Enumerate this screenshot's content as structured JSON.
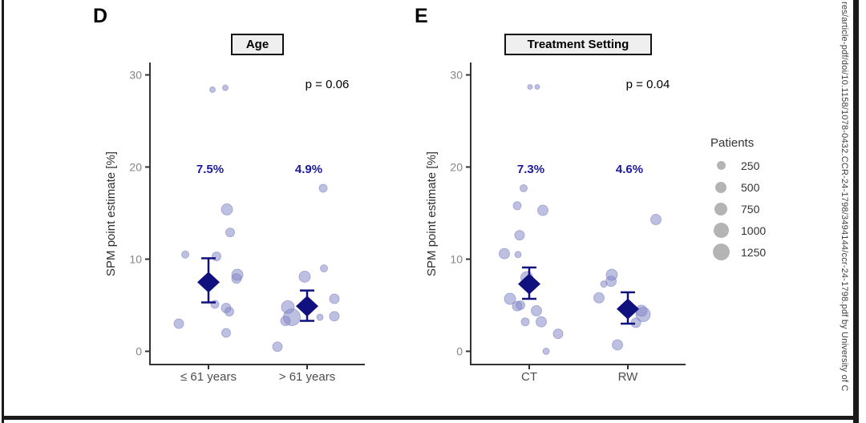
{
  "watermark": {
    "text": "res/article-pdf/doi/10.1158/1078-0432.CCR-24-1798/3494144/ccr-24-1798.pdf by University of C"
  },
  "legend": {
    "title": "Patients",
    "items": [
      {
        "label": "250",
        "diameter": 11
      },
      {
        "label": "500",
        "diameter": 14
      },
      {
        "label": "750",
        "diameter": 16
      },
      {
        "label": "1000",
        "diameter": 19
      },
      {
        "label": "1250",
        "diameter": 21
      }
    ]
  },
  "colors": {
    "bubble": "#7d82c3",
    "diamond": "#10107e",
    "estimate_label": "#1a1a9c",
    "p_label": "#000000",
    "tick_label": "#858585",
    "axis": "#333333",
    "category_label": "#4d4d4d",
    "ylabel": "#303030",
    "legend_circle": "#b4b4b4"
  },
  "chart_data": [
    {
      "panel_label": "D",
      "type": "scatter",
      "title": "Age",
      "p_label": "p = 0.06",
      "ylabel": "SPM point estimate [%]",
      "ylim": [
        -1.5,
        31
      ],
      "yticks": [
        0,
        10,
        20,
        30
      ],
      "categories": [
        "≤ 61 years",
        "> 61 years"
      ],
      "groups": [
        {
          "category": "≤ 61 years",
          "estimate_label": "7.5%",
          "estimate": 7.5,
          "ci": [
            5.3,
            10.1
          ],
          "points": [
            [
              5,
              28.4,
              3.5
            ],
            [
              21,
              28.6,
              3.5
            ],
            [
              23,
              15.4,
              7
            ],
            [
              27,
              12.9,
              5.5
            ],
            [
              -29,
              10.5,
              4.5
            ],
            [
              10,
              10.3,
              5.5
            ],
            [
              36,
              8.3,
              7
            ],
            [
              35,
              7.9,
              6
            ],
            [
              8,
              5.1,
              5
            ],
            [
              22,
              4.7,
              6
            ],
            [
              26,
              4.3,
              5.5
            ],
            [
              -37,
              3.0,
              6
            ],
            [
              22,
              2.0,
              5.5
            ]
          ]
        },
        {
          "category": "> 61 years",
          "estimate_label": "4.9%",
          "estimate": 4.9,
          "ci": [
            3.3,
            6.6
          ],
          "points": [
            [
              20,
              17.7,
              5
            ],
            [
              21,
              9.0,
              4.5
            ],
            [
              -3,
              8.1,
              7
            ],
            [
              34,
              5.7,
              6
            ],
            [
              -24,
              4.8,
              8
            ],
            [
              -19,
              3.7,
              10.5
            ],
            [
              -27,
              3.3,
              6
            ],
            [
              16,
              3.7,
              4
            ],
            [
              34,
              3.8,
              6
            ],
            [
              -37,
              0.5,
              6
            ]
          ]
        }
      ]
    },
    {
      "panel_label": "E",
      "type": "scatter",
      "title": "Treatment Setting",
      "p_label": "p = 0.04",
      "ylabel": "SPM point estimate [%]",
      "ylim": [
        -1.5,
        31
      ],
      "yticks": [
        0,
        10,
        20,
        30
      ],
      "categories": [
        "CT",
        "RW"
      ],
      "groups": [
        {
          "category": "CT",
          "estimate_label": "7.3%",
          "estimate": 7.3,
          "ci": [
            5.7,
            9.1
          ],
          "points": [
            [
              1,
              28.7,
              3
            ],
            [
              10,
              28.7,
              3
            ],
            [
              -7,
              17.7,
              4.5
            ],
            [
              -15,
              15.8,
              5
            ],
            [
              17,
              15.3,
              6.5
            ],
            [
              -12,
              12.6,
              6
            ],
            [
              -31,
              10.6,
              6.5
            ],
            [
              -14,
              10.5,
              4
            ],
            [
              -3,
              8.0,
              7.5
            ],
            [
              -24,
              5.7,
              7
            ],
            [
              -15,
              4.9,
              6
            ],
            [
              -11,
              5.0,
              5.5
            ],
            [
              9,
              4.4,
              6.5
            ],
            [
              -5,
              3.2,
              5
            ],
            [
              15,
              3.2,
              6.5
            ],
            [
              36,
              1.9,
              6
            ],
            [
              21,
              0.0,
              4
            ]
          ]
        },
        {
          "category": "RW",
          "estimate_label": "4.6%",
          "estimate": 4.6,
          "ci": [
            3.0,
            6.4
          ],
          "points": [
            [
              35,
              14.3,
              6.5
            ],
            [
              -20,
              8.3,
              7
            ],
            [
              -21,
              7.6,
              6.5
            ],
            [
              -30,
              7.3,
              4
            ],
            [
              -36,
              5.8,
              6.5
            ],
            [
              17,
              4.4,
              7
            ],
            [
              19,
              4.0,
              9
            ],
            [
              10,
              3.1,
              6
            ],
            [
              -13,
              0.7,
              6.5
            ]
          ]
        }
      ]
    }
  ]
}
